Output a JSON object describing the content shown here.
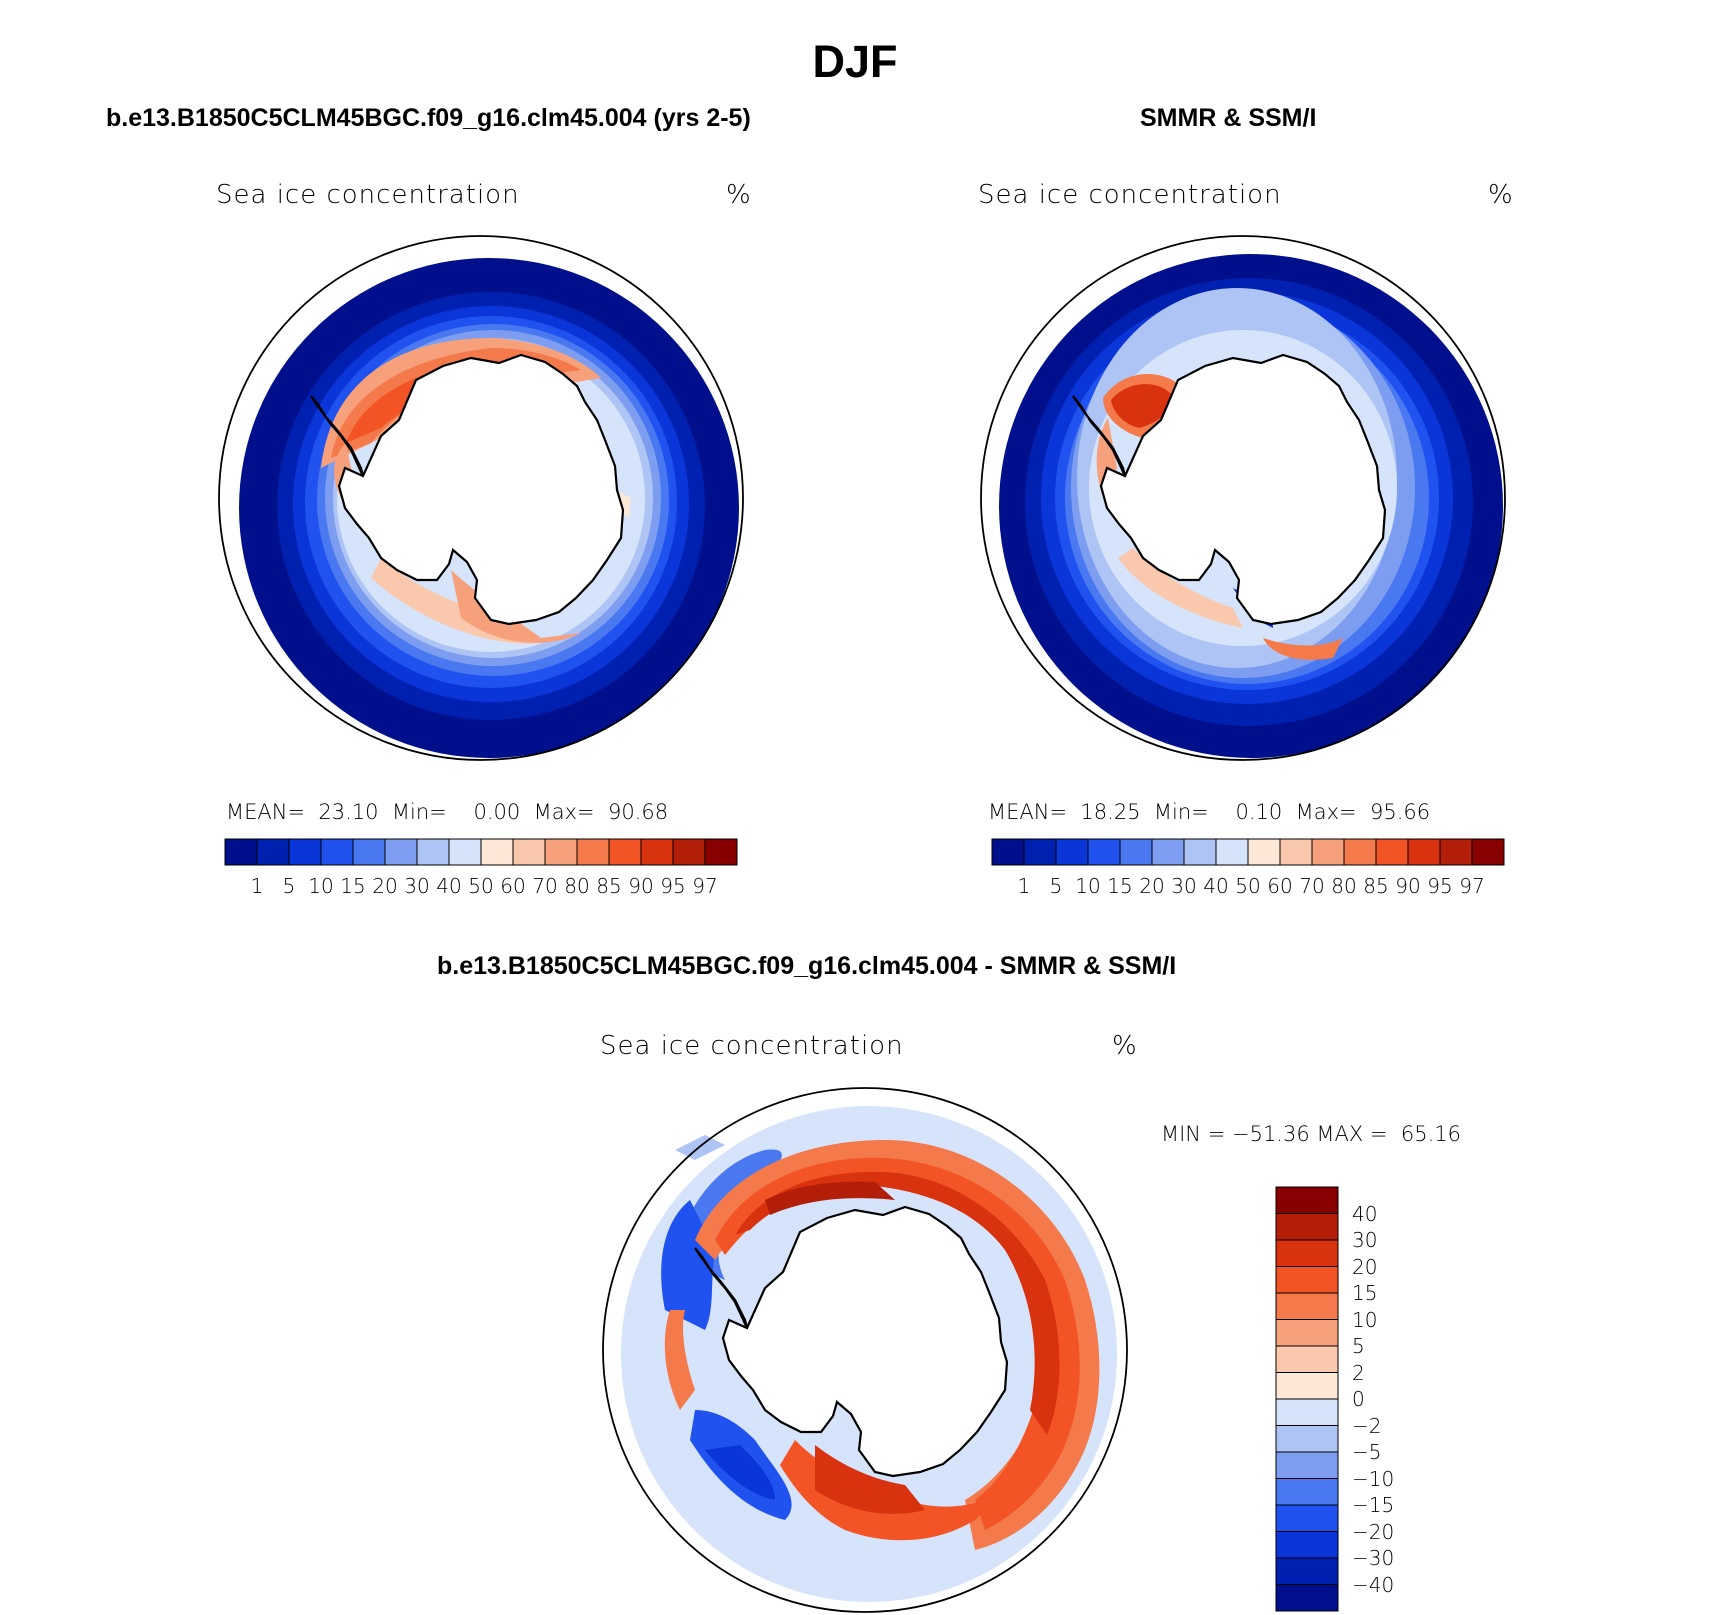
{
  "title": "DJF",
  "panels": {
    "model": {
      "subtitle": "b.e13.B1850C5CLM45BGC.f09_g16.clm45.004 (yrs 2-5)",
      "label": "Sea ice concentration",
      "units": "%",
      "stats_mean_label": "MEAN=",
      "stats_mean": "23.10",
      "stats_min_label": "Min=",
      "stats_min": "0.00",
      "stats_max_label": "Max=",
      "stats_max": "90.68"
    },
    "obs": {
      "subtitle": "SMMR & SSM/I",
      "label": "Sea ice concentration",
      "units": "%",
      "stats_mean_label": "MEAN=",
      "stats_mean": "18.25",
      "stats_min_label": "Min=",
      "stats_min": "0.10",
      "stats_max_label": "Max=",
      "stats_max": "95.66"
    },
    "diff": {
      "subtitle": "b.e13.B1850C5CLM45BGC.f09_g16.clm45.004 - SMMR & SSM/I",
      "label": "Sea ice concentration",
      "units": "%",
      "minmax_min_label": "MIN =",
      "minmax_min": "−51.36",
      "minmax_max_label": "MAX =",
      "minmax_max": "65.16"
    }
  },
  "colorbars": {
    "concentration": {
      "colors": [
        "#000f8c",
        "#0020b0",
        "#0a35d8",
        "#2052f0",
        "#4a78f0",
        "#7d9ef0",
        "#aec4f5",
        "#d6e4fb",
        "#fde8d8",
        "#fac8ad",
        "#f7a17c",
        "#f47a4c",
        "#f25425",
        "#d8320f",
        "#b21e08",
        "#880000"
      ],
      "ticks": [
        "1",
        "5",
        "10",
        "15",
        "20",
        "30",
        "40",
        "50",
        "60",
        "70",
        "80",
        "85",
        "90",
        "95",
        "97"
      ]
    },
    "difference": {
      "colors": [
        "#880000",
        "#b21e08",
        "#d8320f",
        "#f25425",
        "#f47a4c",
        "#f7a17c",
        "#fac8ad",
        "#fde8d8",
        "#d6e4fb",
        "#aec4f5",
        "#7d9ef0",
        "#4a78f0",
        "#2052f0",
        "#0a35d8",
        "#0020b0",
        "#000f8c"
      ],
      "ticks": [
        "40",
        "30",
        "20",
        "15",
        "10",
        "5",
        "2",
        "0",
        "−2",
        "−5",
        "−10",
        "−15",
        "−20",
        "−30",
        "−40"
      ]
    }
  }
}
